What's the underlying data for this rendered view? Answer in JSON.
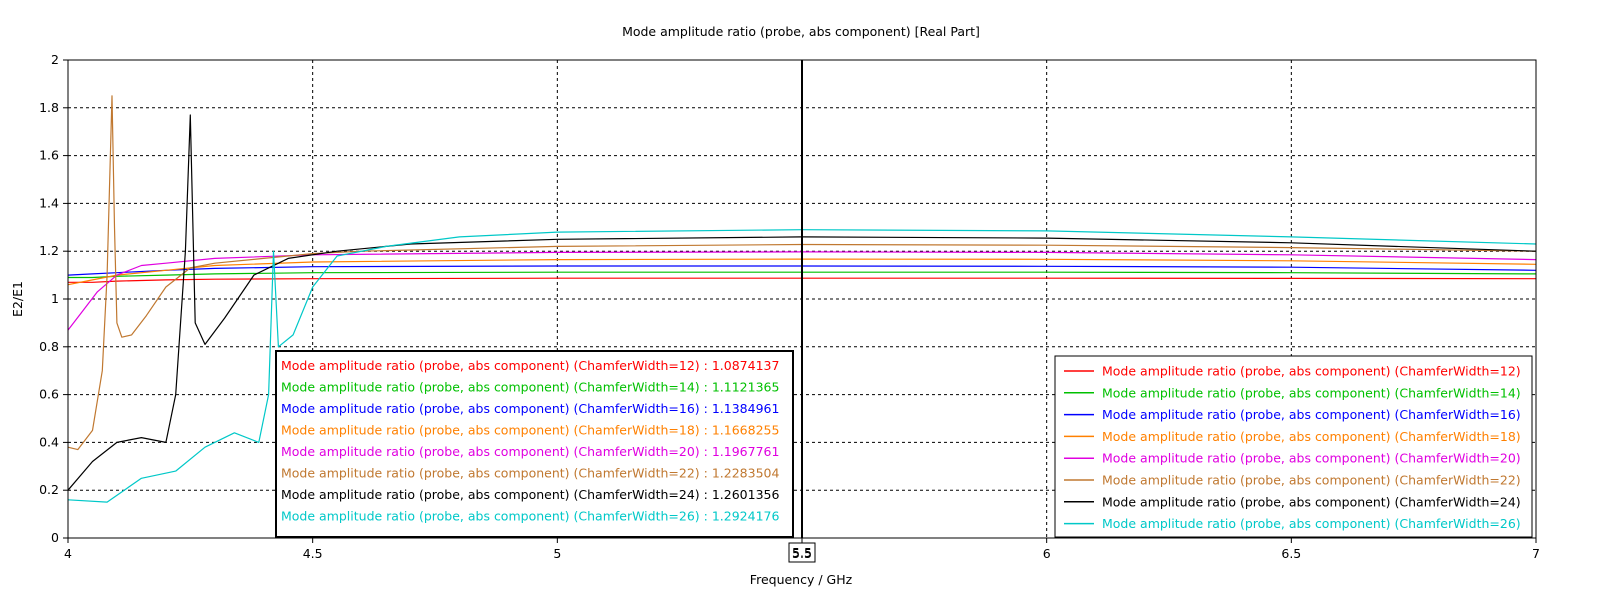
{
  "chart_data": {
    "type": "line",
    "title": "Mode amplitude ratio (probe, abs component) [Real Part]",
    "xlabel": "Frequency / GHz",
    "ylabel": "E2/E1",
    "xlim": [
      4,
      7
    ],
    "ylim": [
      0,
      2
    ],
    "xticks": [
      "4",
      "4.5",
      "5",
      "5.5",
      "6",
      "6.5",
      "7"
    ],
    "yticks": [
      "0",
      "0.2",
      "0.4",
      "0.6",
      "0.8",
      "1",
      "1.2",
      "1.4",
      "1.6",
      "1.8",
      "2"
    ],
    "grid": true,
    "marker": {
      "x": 5.5,
      "label": "5.5"
    },
    "legend_placement": "right, middle",
    "series": [
      {
        "name": "Mode amplitude ratio (probe, abs component) (ChamferWidth=12)",
        "color": "#ff0000",
        "marker_value": "1.0874137",
        "x": [
          4,
          4.05,
          4.1,
          4.2,
          4.3,
          4.5,
          5,
          5.5,
          6,
          6.5,
          7
        ],
        "y": [
          1.07,
          1.07,
          1.075,
          1.08,
          1.083,
          1.085,
          1.087,
          1.087,
          1.087,
          1.086,
          1.085
        ]
      },
      {
        "name": "Mode amplitude ratio (probe, abs component) (ChamferWidth=14)",
        "color": "#00c000",
        "marker_value": "1.1121365",
        "x": [
          4,
          4.05,
          4.1,
          4.2,
          4.3,
          4.5,
          5,
          5.5,
          6,
          6.5,
          7
        ],
        "y": [
          1.09,
          1.09,
          1.095,
          1.1,
          1.105,
          1.11,
          1.112,
          1.112,
          1.112,
          1.11,
          1.105
        ]
      },
      {
        "name": "Mode amplitude ratio (probe, abs component) (ChamferWidth=16)",
        "color": "#0000ff",
        "marker_value": "1.1384961",
        "x": [
          4,
          4.05,
          4.1,
          4.2,
          4.3,
          4.5,
          5,
          5.5,
          6,
          6.5,
          7
        ],
        "y": [
          1.1,
          1.105,
          1.11,
          1.12,
          1.128,
          1.135,
          1.138,
          1.138,
          1.137,
          1.133,
          1.12
        ]
      },
      {
        "name": "Mode amplitude ratio (probe, abs component) (ChamferWidth=18)",
        "color": "#ff8000",
        "marker_value": "1.1668255",
        "x": [
          4,
          4.05,
          4.1,
          4.2,
          4.3,
          4.5,
          5,
          5.5,
          6,
          6.5,
          7
        ],
        "y": [
          1.06,
          1.08,
          1.1,
          1.12,
          1.14,
          1.155,
          1.165,
          1.167,
          1.166,
          1.16,
          1.145
        ]
      },
      {
        "name": "Mode amplitude ratio (probe, abs component) (ChamferWidth=20)",
        "color": "#e000e0",
        "marker_value": "1.1967761",
        "x": [
          4,
          4.03,
          4.06,
          4.1,
          4.15,
          4.2,
          4.3,
          4.5,
          5,
          5.5,
          6,
          6.5,
          7
        ],
        "y": [
          0.87,
          0.95,
          1.03,
          1.1,
          1.14,
          1.15,
          1.17,
          1.185,
          1.195,
          1.197,
          1.195,
          1.185,
          1.165
        ]
      },
      {
        "name": "Mode amplitude ratio (probe, abs component) (ChamferWidth=22)",
        "color": "#c07830",
        "marker_value": "1.2283504",
        "x": [
          4,
          4.02,
          4.05,
          4.07,
          4.08,
          4.09,
          4.095,
          4.1,
          4.11,
          4.13,
          4.16,
          4.2,
          4.25,
          4.3,
          4.4,
          4.5,
          4.6,
          5,
          5.5,
          6,
          6.5,
          7
        ],
        "y": [
          0.38,
          0.37,
          0.45,
          0.7,
          1.1,
          1.85,
          1.3,
          0.9,
          0.84,
          0.85,
          0.93,
          1.05,
          1.13,
          1.15,
          1.17,
          1.19,
          1.2,
          1.22,
          1.228,
          1.225,
          1.215,
          1.2
        ]
      },
      {
        "name": "Mode amplitude ratio (probe, abs component) (ChamferWidth=24)",
        "color": "#000000",
        "marker_value": "1.2601356",
        "x": [
          4,
          4.05,
          4.1,
          4.15,
          4.2,
          4.22,
          4.24,
          4.25,
          4.26,
          4.28,
          4.32,
          4.38,
          4.45,
          4.55,
          4.7,
          5,
          5.5,
          6,
          6.5,
          7
        ],
        "y": [
          0.2,
          0.32,
          0.4,
          0.42,
          0.4,
          0.6,
          1.2,
          1.77,
          0.9,
          0.81,
          0.92,
          1.1,
          1.17,
          1.2,
          1.23,
          1.25,
          1.26,
          1.255,
          1.235,
          1.2
        ]
      },
      {
        "name": "Mode amplitude ratio (probe, abs component) (ChamferWidth=26)",
        "color": "#00c8c8",
        "marker_value": "1.2924176",
        "x": [
          4,
          4.08,
          4.15,
          4.22,
          4.28,
          4.34,
          4.39,
          4.41,
          4.42,
          4.43,
          4.46,
          4.5,
          4.55,
          4.65,
          4.8,
          5,
          5.5,
          6,
          6.5,
          7
        ],
        "y": [
          0.16,
          0.15,
          0.25,
          0.28,
          0.38,
          0.44,
          0.4,
          0.6,
          1.2,
          0.8,
          0.85,
          1.05,
          1.18,
          1.22,
          1.26,
          1.28,
          1.29,
          1.285,
          1.26,
          1.23
        ]
      }
    ]
  }
}
